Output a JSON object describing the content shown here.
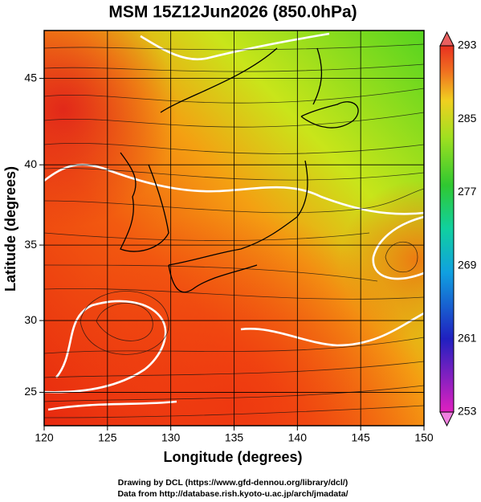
{
  "title": "MSM 15Z12Jun2026 (850.0hPa)",
  "x_axis": {
    "label": "Longitude (degrees)",
    "lim": [
      120,
      150
    ],
    "ticks": [
      120,
      125,
      130,
      135,
      140,
      145,
      150
    ]
  },
  "y_axis": {
    "label": "Latitude  (degrees)",
    "lim": [
      22.6,
      47.6
    ],
    "ticks": [
      25,
      30,
      35,
      40,
      45
    ],
    "projection": "mercator"
  },
  "colorbar": {
    "lim": [
      253,
      293
    ],
    "ticks": [
      253,
      261,
      269,
      277,
      285,
      293
    ]
  },
  "footer": [
    "Drawing by DCL (https://www.gfd-dennou.org/library/dcl/)",
    "Data from http://database.rish.kyoto-u.ac.jp/arch/jmadata/"
  ]
}
